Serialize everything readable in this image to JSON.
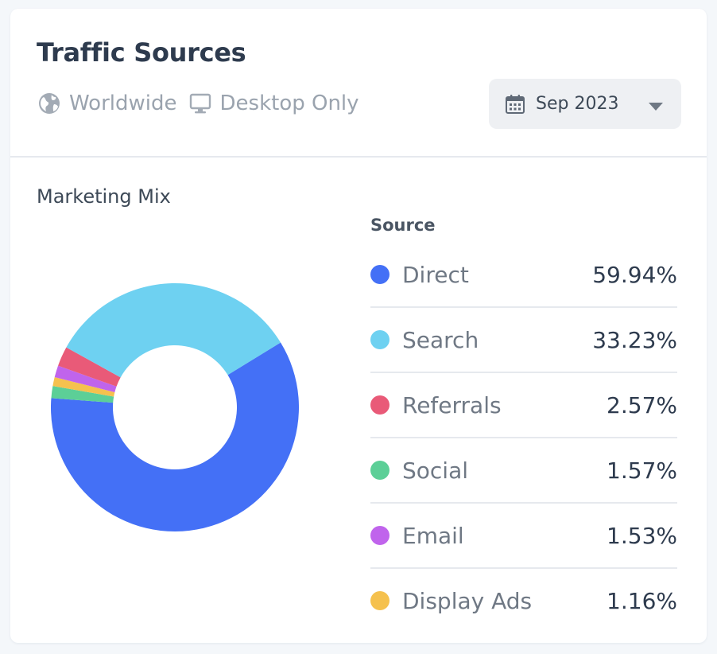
{
  "header": {
    "title": "Traffic Sources",
    "filters": [
      {
        "label": "Worldwide",
        "icon": "globe-icon"
      },
      {
        "label": "Desktop Only",
        "icon": "monitor-icon"
      }
    ],
    "date_picker": {
      "label": "Sep 2023",
      "icon": "calendar-icon",
      "chevron": "chevron-down-icon"
    }
  },
  "section": {
    "title": "Marketing Mix",
    "legend_header": "Source"
  },
  "chart_data": {
    "type": "pie",
    "categories": [
      "Direct",
      "Search",
      "Referrals",
      "Social",
      "Email",
      "Display Ads"
    ],
    "values": [
      59.94,
      33.23,
      2.57,
      1.57,
      1.53,
      1.16
    ],
    "labels": [
      "59.94%",
      "33.23%",
      "2.57%",
      "1.57%",
      "1.53%",
      "1.16%"
    ],
    "colors": [
      "#4470f6",
      "#6ed1f1",
      "#e95a78",
      "#5ccf97",
      "#c064ec",
      "#f5c14e"
    ],
    "draw_order": [
      0,
      3,
      5,
      4,
      2,
      1
    ],
    "legend": "right",
    "donut": true
  }
}
